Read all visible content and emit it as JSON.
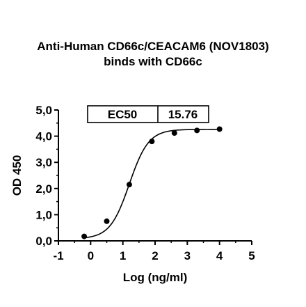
{
  "chart_data": {
    "type": "scatter",
    "title_line1": "Anti-Human CD66c/CEACAM6 (NOV1803)",
    "title_line2": "binds with CD66c",
    "xlabel": "Log (ng/ml)",
    "ylabel": "OD 450",
    "xlim": [
      -1,
      5
    ],
    "ylim": [
      0,
      5
    ],
    "x_ticks": [
      "-1",
      "0",
      "1",
      "2",
      "3",
      "4",
      "5"
    ],
    "y_ticks": [
      "0,0",
      "1,0",
      "2,0",
      "3,0",
      "4,0",
      "5,0"
    ],
    "ec50_label": "EC50",
    "ec50_value": "15.76",
    "grid": false,
    "series": [
      {
        "points": [
          {
            "x": -0.2,
            "y": 0.17
          },
          {
            "x": 0.5,
            "y": 0.75
          },
          {
            "x": 1.2,
            "y": 2.15
          },
          {
            "x": 1.9,
            "y": 3.8
          },
          {
            "x": 2.6,
            "y": 4.12
          },
          {
            "x": 3.3,
            "y": 4.22
          },
          {
            "x": 4.0,
            "y": 4.27
          }
        ],
        "fit": {
          "model": "4PL",
          "bottom": 0.08,
          "top": 4.26,
          "log_ec50": 1.2,
          "hill": 1.45
        }
      }
    ]
  }
}
